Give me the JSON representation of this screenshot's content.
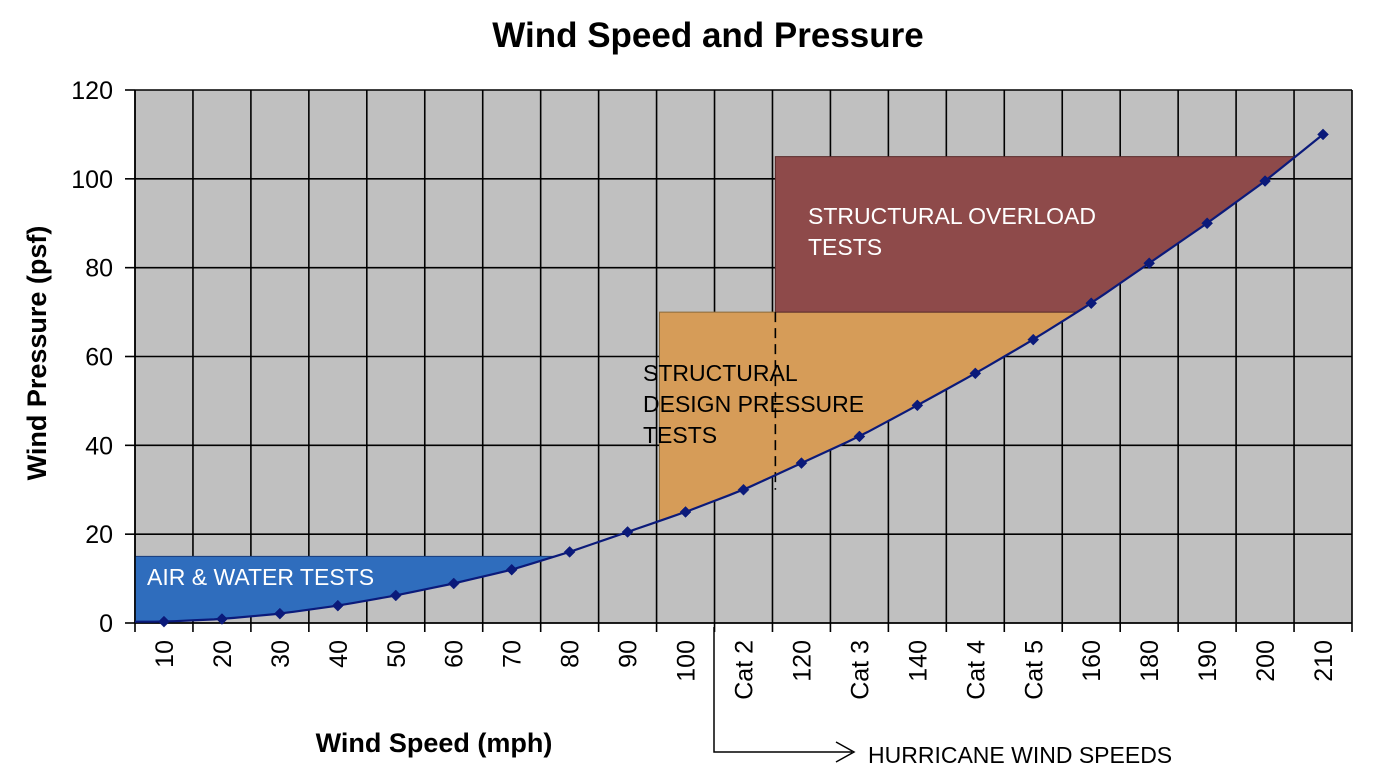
{
  "chart_data": {
    "type": "scatter",
    "title": "Wind Speed and Pressure",
    "xlabel": "Wind Speed (mph)",
    "ylabel": "Wind Pressure (psf)",
    "categories": [
      "10",
      "20",
      "30",
      "40",
      "50",
      "60",
      "70",
      "80",
      "90",
      "100",
      "Cat 2",
      "120",
      "Cat 3",
      "140",
      "Cat 4",
      "Cat 5",
      "160",
      "180",
      "190",
      "200",
      "210"
    ],
    "series": [
      {
        "values": [
          0.3,
          0.9,
          2.1,
          3.9,
          6.2,
          8.9,
          12.0,
          16.0,
          20.5,
          25.0,
          30.0,
          36.0,
          42.0,
          49.0,
          56.2,
          63.8,
          72.0,
          81.0,
          90.0,
          99.5,
          110.0
        ]
      }
    ],
    "yticks": [
      "0",
      "20",
      "40",
      "60",
      "80",
      "100",
      "120"
    ],
    "ylim": [
      0,
      120
    ],
    "grid": true,
    "regions": [
      {
        "label_lines": [
          "AIR & WATER TESTS"
        ],
        "color": "#2f6dbd",
        "text_color": "#ffffff",
        "y_top": 15
      },
      {
        "label_lines": [
          "STRUCTURAL",
          "DESIGN PRESSURE",
          "TESTS"
        ],
        "color": "#d69c58",
        "text_color": "#000000",
        "y_top": 70
      },
      {
        "label_lines": [
          "STRUCTURAL OVERLOAD",
          "TESTS"
        ],
        "color": "#8e4a4a",
        "text_color": "#ffffff",
        "y_top": 105
      }
    ],
    "annotation": "HURRICANE WIND SPEEDS",
    "colors": {
      "plot_bg": "#c0c0c0",
      "grid": "#000000",
      "marker": "#0b1a7a",
      "curve": "#0b1a7a"
    }
  }
}
